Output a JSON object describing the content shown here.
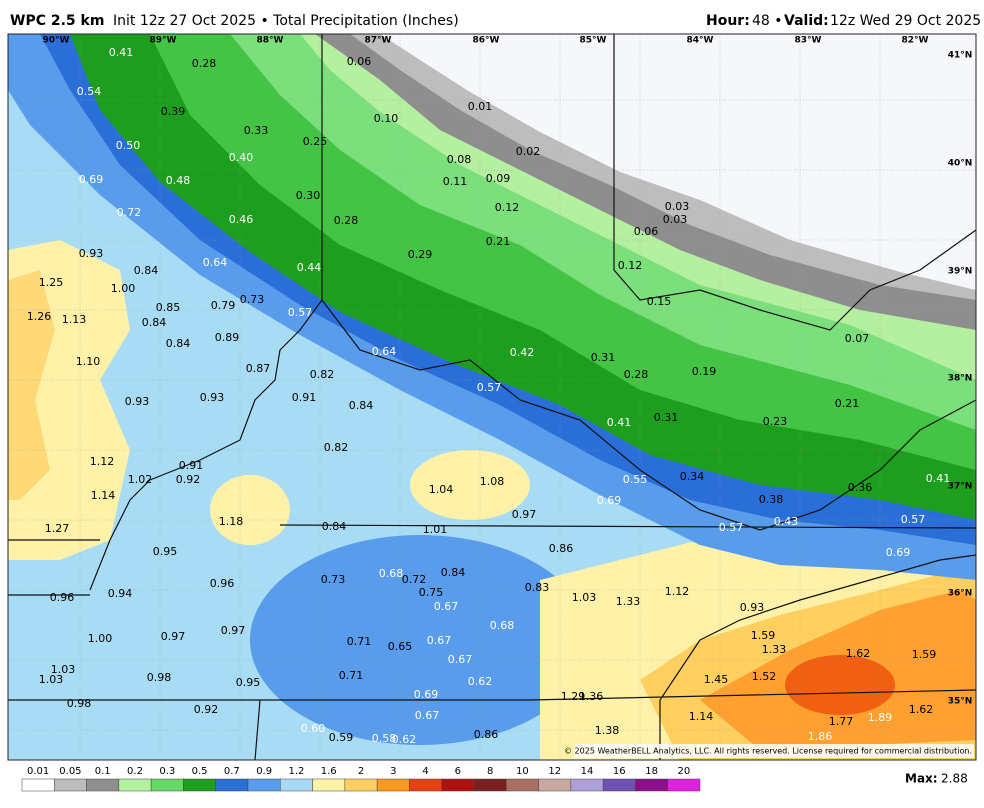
{
  "header": {
    "title": "WPC 2.5 km",
    "subtitle": "Init 12z 27 Oct 2025 • Total Precipitation (Inches)",
    "hour_label": "Hour:",
    "hour_value": "48 •",
    "valid_label": "Valid:",
    "valid_value": "12z Wed 29 Oct 2025"
  },
  "map": {
    "lon_labels": [
      "90°W",
      "89°W",
      "88°W",
      "87°W",
      "86°W",
      "85°W",
      "84°W",
      "83°W",
      "82°W"
    ],
    "lat_labels": [
      "41°N",
      "40°N",
      "39°N",
      "38°N",
      "37°N",
      "36°N",
      "35°N"
    ],
    "values": [
      "0.41",
      "0.28",
      "0.06",
      "0.54",
      "0.39",
      "0.33",
      "0.01",
      "0.10",
      "0.50",
      "0.40",
      "0.25",
      "0.08",
      "0.02",
      "0.69",
      "0.48",
      "0.11",
      "0.09",
      "0.30",
      "0.72",
      "0.46",
      "0.28",
      "0.12",
      "0.03",
      "0.03",
      "0.06",
      "0.21",
      "0.93",
      "0.84",
      "0.64",
      "0.29",
      "0.12",
      "0.44",
      "1.25",
      "1.00",
      "0.73",
      "0.79",
      "0.85",
      "0.15",
      "1.26",
      "1.13",
      "0.84",
      "0.57",
      "0.84",
      "0.89",
      "0.64",
      "0.42",
      "0.31",
      "0.07",
      "1.10",
      "0.87",
      "0.82",
      "0.28",
      "0.19",
      "0.57",
      "0.93",
      "0.93",
      "0.91",
      "0.84",
      "0.21",
      "0.23",
      "0.41",
      "0.31",
      "0.82",
      "1.12",
      "0.91",
      "0.92",
      "1.02",
      "0.34",
      "0.55",
      "0.41",
      "1.04",
      "1.08",
      "0.36",
      "0.38",
      "1.14",
      "0.69",
      "0.97",
      "0.57",
      "0.43",
      "0.57",
      "1.18",
      "0.84",
      "1.01",
      "1.27",
      "0.86",
      "0.95",
      "0.69",
      "0.73",
      "0.68",
      "0.72",
      "0.84",
      "0.96",
      "0.75",
      "0.83",
      "0.96",
      "0.94",
      "1.03",
      "1.33",
      "1.12",
      "0.67",
      "0.93",
      "0.97",
      "0.68",
      "1.00",
      "0.97",
      "1.59",
      "0.71",
      "0.65",
      "0.67",
      "1.33",
      "1.62",
      "1.59",
      "0.67",
      "1.03",
      "1.03",
      "0.71",
      "0.98",
      "1.52",
      "0.95",
      "0.62",
      "1.45",
      "0.69",
      "1.29",
      "1.36",
      "0.98",
      "0.92",
      "0.67",
      "1.14",
      "1.62",
      "1.77",
      "1.89",
      "1.38",
      "0.60",
      "0.59",
      "0.58",
      "0.62",
      "0.86",
      "1.86"
    ],
    "copyright": "© 2025 WeatherBELL Analytics, LLC. All rights reserved. License required for commercial distribution."
  },
  "colorbar": {
    "labels": [
      "0.01",
      "0.05",
      "0.1",
      "0.2",
      "0.3",
      "0.5",
      "0.7",
      "0.9",
      "1.2",
      "1.6",
      "2",
      "3",
      "4",
      "6",
      "8",
      "10",
      "12",
      "14",
      "16",
      "18",
      "20"
    ],
    "colors": [
      "#ffffff",
      "#bdbdbd",
      "#8e8e8e",
      "#b4f0a0",
      "#66d866",
      "#1e9e1e",
      "#2a6fd8",
      "#5a9cec",
      "#a8d8f4",
      "#fff2a8",
      "#ffd060",
      "#ff9a20",
      "#e84010",
      "#b01010",
      "#7a2020",
      "#a87060",
      "#c8a8a0",
      "#b0a0d8",
      "#7050b0",
      "#8a108a",
      "#e020e0"
    ],
    "max_label": "Max:",
    "max_value": "2.88"
  }
}
